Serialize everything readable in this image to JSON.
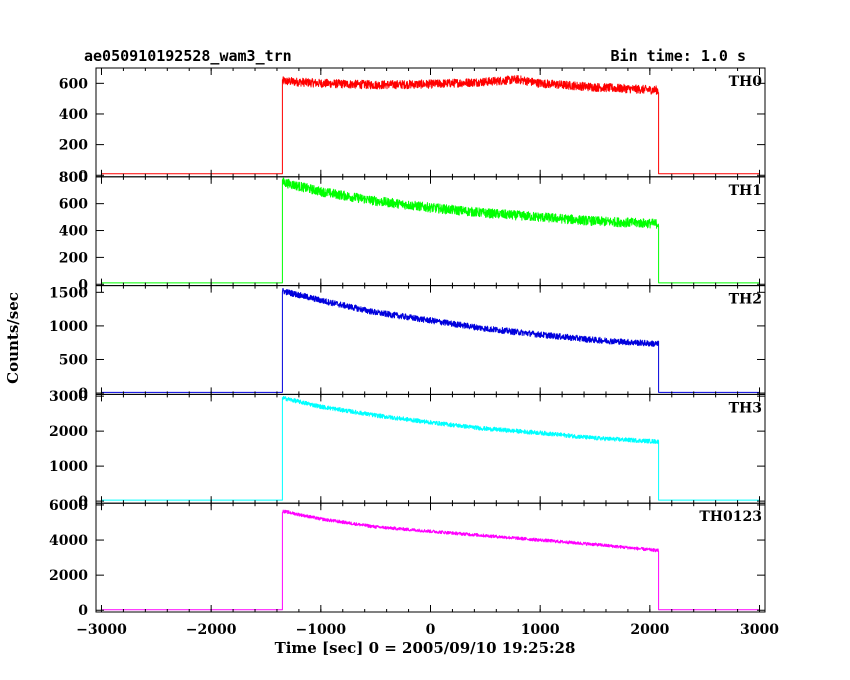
{
  "header": {
    "title": "ae050910192528_wam3_trn",
    "bin_time": "Bin time: 1.0 s"
  },
  "axes": {
    "xlabel": "Time [sec] 0 = 2005/09/10 19:25:28",
    "ylabel": "Counts/sec"
  },
  "chart_data": {
    "type": "line",
    "title": "ae050910192528_wam3_trn",
    "xlabel": "Time [sec] 0 = 2005/09/10 19:25:28",
    "ylabel": "Counts/sec",
    "xlim": [
      -3050,
      3050
    ],
    "x_ticks": [
      -3000,
      -2000,
      -1000,
      0,
      1000,
      2000,
      3000
    ],
    "x_tick_labels": [
      "−3000",
      "−2000",
      "−1000",
      "0",
      "1000",
      "2000",
      "3000"
    ],
    "burst_start": -1350,
    "burst_end": 2080,
    "panels": [
      {
        "name": "TH0",
        "color": "#ff0000",
        "ylim": [
          -10,
          700
        ],
        "y_ticks": [
          0,
          200,
          400,
          600
        ],
        "y_tick_labels": [
          "0",
          "200",
          "400",
          "600"
        ],
        "baseline": 10,
        "series": [
          [
            -1350,
            615
          ],
          [
            -1000,
            600
          ],
          [
            -500,
            590
          ],
          [
            0,
            595
          ],
          [
            500,
            610
          ],
          [
            800,
            625
          ],
          [
            1000,
            600
          ],
          [
            1500,
            575
          ],
          [
            2080,
            555
          ]
        ],
        "noise": 28
      },
      {
        "name": "TH1",
        "color": "#00ff00",
        "ylim": [
          -10,
          800
        ],
        "y_ticks": [
          0,
          200,
          400,
          600,
          800
        ],
        "y_tick_labels": [
          "0",
          "200",
          "400",
          "600",
          "800"
        ],
        "baseline": 10,
        "series": [
          [
            -1350,
            760
          ],
          [
            -1000,
            690
          ],
          [
            -500,
            620
          ],
          [
            0,
            570
          ],
          [
            500,
            530
          ],
          [
            1000,
            500
          ],
          [
            1500,
            470
          ],
          [
            2080,
            450
          ]
        ],
        "noise": 35
      },
      {
        "name": "TH2",
        "color": "#0000dd",
        "ylim": [
          -20,
          1600
        ],
        "y_ticks": [
          0,
          500,
          1000,
          1500
        ],
        "y_tick_labels": [
          "0",
          "500",
          "1000",
          "1500"
        ],
        "baseline": 10,
        "series": [
          [
            -1350,
            1520
          ],
          [
            -1000,
            1380
          ],
          [
            -500,
            1200
          ],
          [
            0,
            1080
          ],
          [
            500,
            960
          ],
          [
            1000,
            870
          ],
          [
            1500,
            790
          ],
          [
            2080,
            730
          ]
        ],
        "noise": 45
      },
      {
        "name": "TH3",
        "color": "#00ffff",
        "ylim": [
          -60,
          3050
        ],
        "y_ticks": [
          0,
          1000,
          2000,
          3000
        ],
        "y_tick_labels": [
          "0",
          "1000",
          "2000",
          "3000"
        ],
        "baseline": 30,
        "series": [
          [
            -1350,
            2950
          ],
          [
            -1000,
            2700
          ],
          [
            -500,
            2450
          ],
          [
            0,
            2250
          ],
          [
            500,
            2070
          ],
          [
            1000,
            1950
          ],
          [
            1500,
            1800
          ],
          [
            2080,
            1700
          ]
        ],
        "noise": 60
      },
      {
        "name": "TH0123",
        "color": "#ff00ff",
        "ylim": [
          -100,
          6100
        ],
        "y_ticks": [
          0,
          2000,
          4000,
          6000
        ],
        "y_tick_labels": [
          "0",
          "2000",
          "4000",
          "6000"
        ],
        "baseline": 30,
        "series": [
          [
            -1350,
            5650
          ],
          [
            -1000,
            5200
          ],
          [
            -500,
            4750
          ],
          [
            0,
            4500
          ],
          [
            500,
            4250
          ],
          [
            1000,
            4000
          ],
          [
            1500,
            3750
          ],
          [
            2080,
            3400
          ]
        ],
        "noise": 90
      }
    ]
  }
}
